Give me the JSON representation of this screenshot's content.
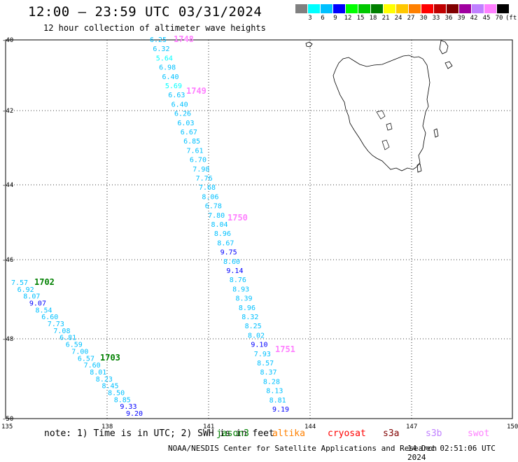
{
  "header": {
    "title": "12:00 – 23:59 UTC 03/31/2024",
    "subtitle": "12 hour collection of altimeter wave heights"
  },
  "legend": {
    "colors": [
      "#808080",
      "#00ffff",
      "#00c0ff",
      "#0000ff",
      "#00ff00",
      "#00c800",
      "#008000",
      "#ffff00",
      "#ffc800",
      "#ff8000",
      "#ff0000",
      "#c00000",
      "#800000",
      "#a000a0",
      "#c080ff",
      "#ff80ff",
      "#000000"
    ],
    "labels": [
      "3",
      "6",
      "9",
      "12",
      "15",
      "18",
      "21",
      "24",
      "27",
      "30",
      "33",
      "36",
      "39",
      "42",
      "45",
      "70",
      "(ft)"
    ]
  },
  "axes": {
    "lat_labels": [
      "-40",
      "-42",
      "-44",
      "-46",
      "-48",
      "-50"
    ],
    "lon_labels": [
      "135",
      "138",
      "141",
      "144",
      "147",
      "150"
    ]
  },
  "track_labels": [
    {
      "text": "1748",
      "color": "#ff80ff"
    },
    {
      "text": "1749",
      "color": "#ff80ff"
    },
    {
      "text": "1750",
      "color": "#ff80ff"
    },
    {
      "text": "1751",
      "color": "#ff80ff"
    },
    {
      "text": "1702",
      "color": "#008000"
    },
    {
      "text": "1703",
      "color": "#008000"
    }
  ],
  "tracks": [
    {
      "name": "east",
      "points": [
        {
          "v": "6.25",
          "c": "#00c0ff"
        },
        {
          "v": "6.32",
          "c": "#00c0ff"
        },
        {
          "v": "5.64",
          "c": "#00ffff"
        },
        {
          "v": "6.98",
          "c": "#00c0ff"
        },
        {
          "v": "6.40",
          "c": "#00c0ff"
        },
        {
          "v": "5.69",
          "c": "#00ffff"
        },
        {
          "v": "6.63",
          "c": "#00c0ff"
        },
        {
          "v": "6.40",
          "c": "#00c0ff"
        },
        {
          "v": "6.26",
          "c": "#00c0ff"
        },
        {
          "v": "6.03",
          "c": "#00c0ff"
        },
        {
          "v": "6.67",
          "c": "#00c0ff"
        },
        {
          "v": "6.85",
          "c": "#00c0ff"
        },
        {
          "v": "7.61",
          "c": "#00c0ff"
        },
        {
          "v": "6.70",
          "c": "#00c0ff"
        },
        {
          "v": "7.98",
          "c": "#00c0ff"
        },
        {
          "v": "7.76",
          "c": "#00c0ff"
        },
        {
          "v": "7.68",
          "c": "#00c0ff"
        },
        {
          "v": "8.06",
          "c": "#00c0ff"
        },
        {
          "v": "6.78",
          "c": "#00c0ff"
        },
        {
          "v": "7.80",
          "c": "#00c0ff"
        },
        {
          "v": "8.04",
          "c": "#00c0ff"
        },
        {
          "v": "8.96",
          "c": "#00c0ff"
        },
        {
          "v": "8.67",
          "c": "#00c0ff"
        },
        {
          "v": "9.75",
          "c": "#0000ff"
        },
        {
          "v": "8.60",
          "c": "#00c0ff"
        },
        {
          "v": "9.14",
          "c": "#0000ff"
        },
        {
          "v": "8.76",
          "c": "#00c0ff"
        },
        {
          "v": "8.93",
          "c": "#00c0ff"
        },
        {
          "v": "8.39",
          "c": "#00c0ff"
        },
        {
          "v": "8.96",
          "c": "#00c0ff"
        },
        {
          "v": "8.32",
          "c": "#00c0ff"
        },
        {
          "v": "8.25",
          "c": "#00c0ff"
        },
        {
          "v": "8.02",
          "c": "#00c0ff"
        },
        {
          "v": "9.10",
          "c": "#0000ff"
        },
        {
          "v": "7.93",
          "c": "#00c0ff"
        },
        {
          "v": "8.57",
          "c": "#00c0ff"
        },
        {
          "v": "8.37",
          "c": "#00c0ff"
        },
        {
          "v": "8.28",
          "c": "#00c0ff"
        },
        {
          "v": "8.13",
          "c": "#00c0ff"
        },
        {
          "v": "8.81",
          "c": "#00c0ff"
        },
        {
          "v": "9.19",
          "c": "#0000ff"
        }
      ]
    },
    {
      "name": "west",
      "points": [
        {
          "v": "7.57",
          "c": "#00c0ff"
        },
        {
          "v": "6.92",
          "c": "#00c0ff"
        },
        {
          "v": "8.07",
          "c": "#00c0ff"
        },
        {
          "v": "9.07",
          "c": "#0000ff"
        },
        {
          "v": "8.54",
          "c": "#00c0ff"
        },
        {
          "v": "6.60",
          "c": "#00c0ff"
        },
        {
          "v": "7.73",
          "c": "#00c0ff"
        },
        {
          "v": "7.08",
          "c": "#00c0ff"
        },
        {
          "v": "6.81",
          "c": "#00c0ff"
        },
        {
          "v": "6.59",
          "c": "#00c0ff"
        },
        {
          "v": "7.00",
          "c": "#00c0ff"
        },
        {
          "v": "6.57",
          "c": "#00c0ff"
        },
        {
          "v": "7.60",
          "c": "#00c0ff"
        },
        {
          "v": "8.01",
          "c": "#00c0ff"
        },
        {
          "v": "8.23",
          "c": "#00c0ff"
        },
        {
          "v": "8.45",
          "c": "#00c0ff"
        },
        {
          "v": "8.50",
          "c": "#00c0ff"
        },
        {
          "v": "8.85",
          "c": "#00c0ff"
        },
        {
          "v": "9.33",
          "c": "#0000ff"
        },
        {
          "v": "9.20",
          "c": "#0000ff"
        }
      ]
    }
  ],
  "note": "note: 1) Time is in UTC; 2) SWH is in feet",
  "satellites": [
    {
      "name": "jason3",
      "color": "#008000"
    },
    {
      "name": "altika",
      "color": "#ff8000"
    },
    {
      "name": "cryosat",
      "color": "#ff0000"
    },
    {
      "name": "s3a",
      "color": "#800000"
    },
    {
      "name": "s3b",
      "color": "#c080ff"
    },
    {
      "name": "swot",
      "color": "#ff80ff"
    }
  ],
  "footer": {
    "center": "NOAA/NESDIS Center for Satellite Applications and Research",
    "date": "14 Dec 02:51:06 UTC 2024"
  }
}
